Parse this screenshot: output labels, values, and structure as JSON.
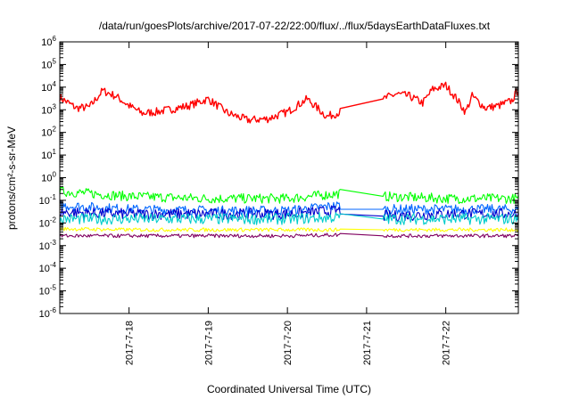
{
  "chart_data": {
    "type": "line",
    "title": "/data/run/goesPlots/archive/2017-07-22/22:00/flux/../flux/5daysEarthDataFluxes.txt",
    "xlabel": "Coordinated Universal Time (UTC)",
    "ylabel": "protons/cm²-s-sr-MeV",
    "yscale": "log",
    "ylim": [
      1e-06,
      1000000.0
    ],
    "xlim": [
      "2017-07-17 03:00",
      "2017-07-22 22:00"
    ],
    "x_ticks": [
      "2017-7-18",
      "2017-7-19",
      "2017-7-20",
      "2017-7-21",
      "2017-7-22"
    ],
    "y_ticks": [
      {
        "base": "10",
        "exp": "-6"
      },
      {
        "base": "10",
        "exp": "-5"
      },
      {
        "base": "10",
        "exp": "-4"
      },
      {
        "base": "10",
        "exp": "-3"
      },
      {
        "base": "10",
        "exp": "-2"
      },
      {
        "base": "10",
        "exp": "-1"
      },
      {
        "base": "10",
        "exp": "0"
      },
      {
        "base": "10",
        "exp": "1"
      },
      {
        "base": "10",
        "exp": "2"
      },
      {
        "base": "10",
        "exp": "3"
      },
      {
        "base": "10",
        "exp": "4"
      },
      {
        "base": "10",
        "exp": "5"
      },
      {
        "base": "10",
        "exp": "6"
      }
    ],
    "legend": "none",
    "grid": false,
    "gap": {
      "start": "2017-07-20 16:00",
      "end": "2017-07-21 05:00"
    },
    "series": [
      {
        "color": "#ff0000",
        "x": [
          "2017-07-17 03:00",
          "2017-07-17 08:00",
          "2017-07-17 12:00",
          "2017-07-17 16:00",
          "2017-07-17 20:00",
          "2017-07-18 00:00",
          "2017-07-18 04:00",
          "2017-07-18 08:00",
          "2017-07-18 12:00",
          "2017-07-18 18:00",
          "2017-07-19 00:00",
          "2017-07-19 06:00",
          "2017-07-19 12:00",
          "2017-07-19 18:00",
          "2017-07-20 00:00",
          "2017-07-20 06:00",
          "2017-07-20 12:00",
          "2017-07-20 16:00",
          "2017-07-21 05:00",
          "2017-07-21 09:00",
          "2017-07-21 13:00",
          "2017-07-21 17:00",
          "2017-07-21 20:00",
          "2017-07-22 00:00",
          "2017-07-22 03:00",
          "2017-07-22 06:00",
          "2017-07-22 08:00",
          "2017-07-22 12:00",
          "2017-07-22 16:00",
          "2017-07-22 20:00",
          "2017-07-22 22:00"
        ],
        "y": [
          3500,
          1200,
          1300,
          7000,
          4000,
          1500,
          700,
          800,
          1000,
          1500,
          3000,
          700,
          350,
          400,
          800,
          3000,
          500,
          800,
          3000,
          5000,
          4000,
          2000,
          8000,
          12000,
          3500,
          800,
          4000,
          1200,
          1500,
          2500,
          8000
        ]
      },
      {
        "color": "#00ff00",
        "x": [
          "2017-07-17 03:00",
          "2017-07-18 00:00",
          "2017-07-19 00:00",
          "2017-07-20 00:00",
          "2017-07-20 16:00",
          "2017-07-21 05:00",
          "2017-07-22 00:00",
          "2017-07-22 22:00"
        ],
        "y": [
          0.25,
          0.15,
          0.12,
          0.12,
          0.2,
          0.15,
          0.12,
          0.12
        ]
      },
      {
        "color": "#0066ff",
        "x": [
          "2017-07-17 03:00",
          "2017-07-18 00:00",
          "2017-07-19 00:00",
          "2017-07-20 00:00",
          "2017-07-20 16:00",
          "2017-07-21 05:00",
          "2017-07-22 00:00",
          "2017-07-22 22:00"
        ],
        "y": [
          0.06,
          0.04,
          0.035,
          0.035,
          0.06,
          0.04,
          0.04,
          0.04
        ]
      },
      {
        "color": "#0000cc",
        "x": [
          "2017-07-17 03:00",
          "2017-07-18 00:00",
          "2017-07-19 00:00",
          "2017-07-20 00:00",
          "2017-07-20 16:00",
          "2017-07-21 05:00",
          "2017-07-22 00:00",
          "2017-07-22 22:00"
        ],
        "y": [
          0.03,
          0.025,
          0.025,
          0.025,
          0.035,
          0.02,
          0.025,
          0.025
        ]
      },
      {
        "color": "#00cccc",
        "x": [
          "2017-07-17 03:00",
          "2017-07-18 00:00",
          "2017-07-19 00:00",
          "2017-07-20 00:00",
          "2017-07-20 16:00",
          "2017-07-21 05:00",
          "2017-07-22 00:00",
          "2017-07-22 22:00"
        ],
        "y": [
          0.015,
          0.015,
          0.015,
          0.015,
          0.018,
          0.015,
          0.015,
          0.015
        ]
      },
      {
        "color": "#ffff00",
        "x": [
          "2017-07-17 03:00",
          "2017-07-18 00:00",
          "2017-07-19 00:00",
          "2017-07-20 00:00",
          "2017-07-20 16:00",
          "2017-07-21 05:00",
          "2017-07-22 00:00",
          "2017-07-22 22:00"
        ],
        "y": [
          0.0055,
          0.005,
          0.005,
          0.005,
          0.005,
          0.005,
          0.005,
          0.005
        ]
      },
      {
        "color": "#800060",
        "x": [
          "2017-07-17 03:00",
          "2017-07-18 00:00",
          "2017-07-19 00:00",
          "2017-07-20 00:00",
          "2017-07-20 16:00",
          "2017-07-21 05:00",
          "2017-07-22 00:00",
          "2017-07-22 22:00"
        ],
        "y": [
          0.0027,
          0.0027,
          0.0027,
          0.0027,
          0.003,
          0.0027,
          0.0027,
          0.0027
        ]
      }
    ]
  }
}
